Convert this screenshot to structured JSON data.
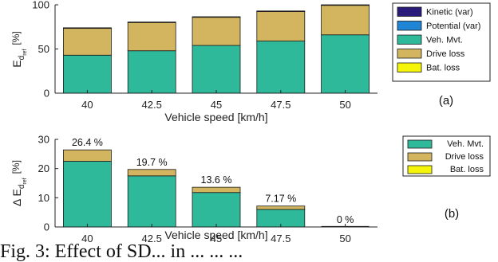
{
  "colors": {
    "kinetic": "#2a1b7a",
    "potential": "#1f86d6",
    "veh_mvt": "#2fb99b",
    "drive_loss": "#d2b55e",
    "bat_loss": "#f5f50a",
    "axis": "#222222"
  },
  "chart_data": [
    {
      "type": "bar",
      "stacked": true,
      "panel_label": "(a)",
      "xlabel": "Vehicle speed [km/h]",
      "ylabel_main": "E",
      "ylabel_sub": "d",
      "ylabel_subsub": "ref",
      "ylabel_unit": "[%]",
      "categories": [
        "40",
        "42.5",
        "45",
        "47.5",
        "50"
      ],
      "ylim": [
        0,
        100
      ],
      "yticks": [
        "0",
        "50",
        "100"
      ],
      "legend_position": "right",
      "series": [
        {
          "name": "Kinetic (var)",
          "values": [
            0.4,
            0.4,
            0.4,
            0.4,
            0.4
          ]
        },
        {
          "name": "Potential (var)",
          "values": [
            0,
            0,
            0,
            0,
            0
          ]
        },
        {
          "name": "Veh. Mvt.",
          "values": [
            43,
            48,
            54,
            59,
            66
          ]
        },
        {
          "name": "Drive loss",
          "values": [
            30.6,
            32.1,
            32.1,
            33.6,
            33.6
          ]
        },
        {
          "name": "Bat. loss",
          "values": [
            0,
            0,
            0,
            0,
            0
          ]
        }
      ]
    },
    {
      "type": "bar",
      "stacked": true,
      "panel_label": "(b)",
      "xlabel": "Vehicle speed [km/h]",
      "ylabel_main": "Δ E",
      "ylabel_sub": "d",
      "ylabel_subsub": "ref",
      "ylabel_unit": "[%]",
      "categories": [
        "40",
        "42.5",
        "45",
        "47.5",
        "50"
      ],
      "ylim": [
        0,
        30
      ],
      "yticks": [
        "0",
        "10",
        "20",
        "30"
      ],
      "legend_position": "right",
      "data_labels": [
        "26.4 %",
        "19.7 %",
        "13.6 %",
        "7.17 %",
        "0 %"
      ],
      "series": [
        {
          "name": "Veh. Mvt.",
          "values": [
            22.5,
            17.5,
            11.8,
            6.0,
            0
          ]
        },
        {
          "name": "Drive loss",
          "values": [
            3.9,
            2.2,
            1.8,
            1.17,
            0
          ]
        },
        {
          "name": "Bat. loss",
          "values": [
            0,
            0,
            0,
            0,
            0
          ]
        }
      ]
    }
  ],
  "caption": "Fig. 3: Effect of SD... in ... ... ..."
}
